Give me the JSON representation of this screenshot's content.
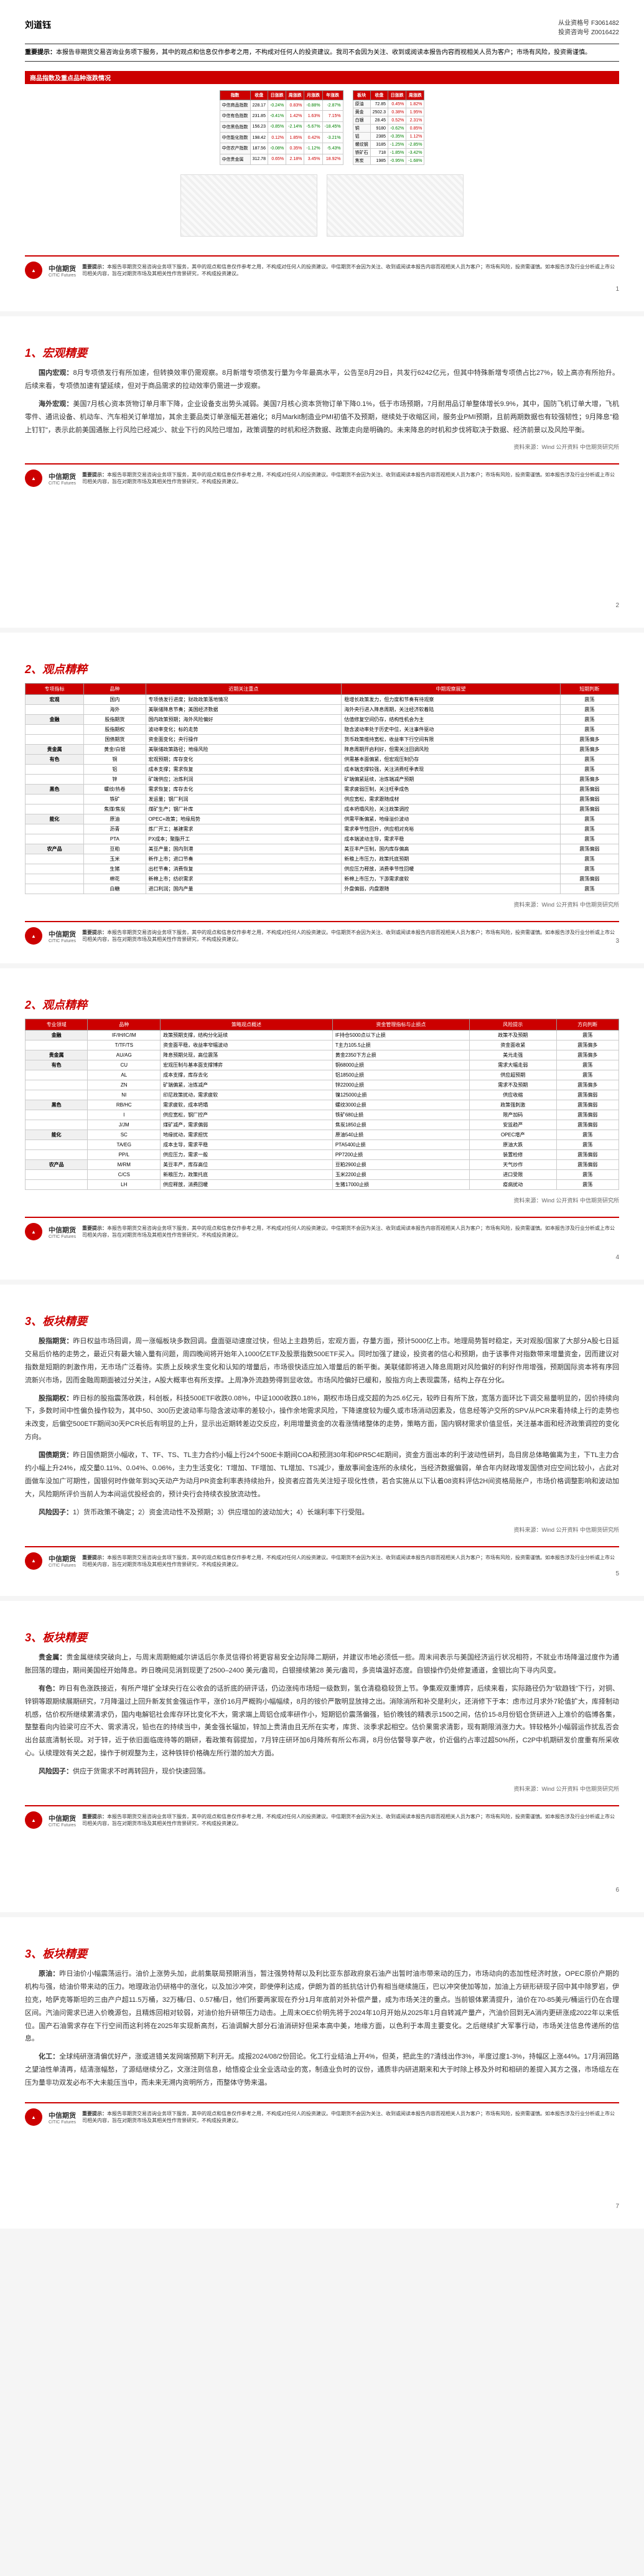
{
  "author": "刘道钰",
  "cert1_label": "从业资格号",
  "cert1_value": "F3061482",
  "cert2_label": "投资咨询号",
  "cert2_value": "Z0016422",
  "disclaimer_label": "重要提示：",
  "disclaimer_text": "本报告非期货交易咨询业务项下服务，其中的观点和信息仅作参考之用，不构成对任何人的投资建议。我司不会因为关注、收到或阅读本报告内容而视相关人员为客户；市场有风险，投资需谨慎。",
  "footer_disclaimer": "本报告非期货交易咨询业务项下服务，其中的观点和信息仅作参考之用，不构成对任何人的投资建议。中信期货不会因为关注、收到或阅读本报告内容而视相关人员为客户；市场有风险，投资需谨慎。如本报告涉及行业分析或上市公司相关内容，旨在对期货市场及其相关性作背景研究，不构成投资建议。",
  "logo_name": "中信期货",
  "logo_en": "CITIC Futures",
  "source_note": "资料来源：Wind 公开资料 中信期货研究所",
  "sections": {
    "s1_title": "1、宏观精要",
    "s2_title": "2、观点精粹",
    "s3_title": "3、板块精要"
  },
  "page1": {
    "table_headers": [
      "商品指数及重点品种涨跌情况"
    ],
    "index_table": {
      "title": "商品期货指数",
      "cols": [
        "指数",
        "收盘",
        "日涨跌",
        "周涨跌",
        "月涨跌",
        "年涨跌"
      ],
      "rows": [
        [
          "中信商品指数",
          "228.17",
          "-0.24%",
          "0.83%",
          "-0.88%",
          "-2.87%"
        ],
        [
          "中信有色指数",
          "231.85",
          "-0.41%",
          "1.42%",
          "1.63%",
          "7.15%"
        ],
        [
          "中信黑色指数",
          "156.23",
          "-0.85%",
          "-2.14%",
          "-5.67%",
          "-18.45%"
        ],
        [
          "中信能化指数",
          "198.42",
          "0.12%",
          "1.85%",
          "0.42%",
          "-3.21%"
        ],
        [
          "中信农产指数",
          "187.56",
          "-0.08%",
          "0.35%",
          "-1.12%",
          "-5.43%"
        ],
        [
          "中信贵金属",
          "312.78",
          "0.65%",
          "2.18%",
          "3.45%",
          "18.92%"
        ]
      ]
    },
    "sector_table": {
      "title": "重点板块涨跌",
      "cols": [
        "板块",
        "收盘",
        "日涨跌",
        "周涨跌"
      ],
      "rows": [
        [
          "原油",
          "72.85",
          "0.45%",
          "1.82%"
        ],
        [
          "黄金",
          "2502.3",
          "0.38%",
          "1.95%"
        ],
        [
          "白银",
          "28.45",
          "0.52%",
          "2.31%"
        ],
        [
          "铜",
          "9180",
          "-0.62%",
          "0.85%"
        ],
        [
          "铝",
          "2385",
          "-0.35%",
          "1.12%"
        ],
        [
          "螺纹钢",
          "3185",
          "-1.25%",
          "-2.85%"
        ],
        [
          "铁矿石",
          "718",
          "-1.85%",
          "-3.42%"
        ],
        [
          "焦炭",
          "1985",
          "-0.95%",
          "-1.68%"
        ]
      ]
    }
  },
  "page2": {
    "domestic_label": "国内宏观：",
    "domestic_text": "8月专项债发行有所加速，但转换效率仍需观察。8月新增专项债发行量为今年最高水平，公告至8月29日，共发行6242亿元，但其中特殊新增专项债占比27%，较上高亦有所抬升。后续来看，专项债加速有望延续，但对于商品需求的拉动效率仍需进一步观察。",
    "overseas_label": "海外宏观：",
    "overseas_text": "美国7月核心资本货物订单月率下降，企业设备支出势头减弱。美国7月核心资本货物订单下降0.1%，低于市场预期，7月耐用品订单整体增长9.9%，其中，国防飞机订单大增，飞机零件、通讯设备、机动车、汽车相关订单增加，其余主要品类订单涨幅无甚遍化；8月Markit制造业PMI初值不及预期，继续处于收缩区间，服务业PMI预期，且前两期数据也有较强韧性；9月降息\"稳上钉钉\"，表示此前美国通胀上行风险已经减少、就业下行的风险已增加，政策调整的时机和经济数据、政策走向是明确的。未来降息的时机和步伐将取决于数据、经济前景以及风险平衡。"
  },
  "page3": {
    "table_title": "宏观精要一览",
    "cols": [
      "专项指标",
      "品种",
      "近期关注重点",
      "中期观察展望",
      "短期判断"
    ],
    "rows": [
      [
        "宏观",
        "国内",
        "专项债发行进度；财政政策落地情况",
        "稳增长政策发力，但力度和节奏有待观察",
        "震荡"
      ],
      [
        "",
        "海外",
        "美联储降息节奏；美国经济数据",
        "海外央行进入降息周期，关注经济软着陆",
        "震荡"
      ],
      [
        "金融",
        "股指期货",
        "国内政策预期；海外风险偏好",
        "估值修复空间仍存，结构性机会为主",
        "震荡"
      ],
      [
        "",
        "股指期权",
        "波动率变化；标的走势",
        "隐含波动率处于历史中位，关注事件驱动",
        "震荡"
      ],
      [
        "",
        "国债期货",
        "资金面变化；央行操作",
        "货币政策维持宽松，收益率下行空间有限",
        "震荡偏多"
      ],
      [
        "贵金属",
        "黄金/白银",
        "美联储政策路径；地缘风险",
        "降息周期开启利好，但需关注回调风险",
        "震荡偏多"
      ],
      [
        "有色",
        "铜",
        "宏观预期；库存变化",
        "供需基本面偏紧，但宏观压制仍存",
        "震荡"
      ],
      [
        "",
        "铝",
        "成本支撑；需求恢复",
        "成本端支撑较强，关注消费旺季表现",
        "震荡"
      ],
      [
        "",
        "锌",
        "矿端供应；冶炼利润",
        "矿端偏紧延续，冶炼端减产预期",
        "震荡偏多"
      ],
      [
        "黑色",
        "螺纹/热卷",
        "需求恢复；库存去化",
        "需求疲弱压制，关注旺季成色",
        "震荡偏弱"
      ],
      [
        "",
        "铁矿",
        "发运量；钢厂利润",
        "供应宽松，需求跟随成材",
        "震荡偏弱"
      ],
      [
        "",
        "焦煤/焦炭",
        "煤矿生产；钢厂补库",
        "成本坍塌风险，关注政策调控",
        "震荡偏弱"
      ],
      [
        "能化",
        "原油",
        "OPEC+政策；地缘局势",
        "供需平衡偏紧，地缘溢价波动",
        "震荡"
      ],
      [
        "",
        "沥青",
        "炼厂开工；基建需求",
        "需求季节性回升，供应相对充裕",
        "震荡"
      ],
      [
        "",
        "PTA",
        "PX成本；聚酯开工",
        "成本端波动主导，需求平稳",
        "震荡"
      ],
      [
        "农产品",
        "豆粕",
        "美豆产量；国内到港",
        "美豆丰产压制，国内库存偏高",
        "震荡偏弱"
      ],
      [
        "",
        "玉米",
        "新作上市；进口节奏",
        "新粮上市压力，政策托底预期",
        "震荡"
      ],
      [
        "",
        "生猪",
        "出栏节奏；消费恢复",
        "供应压力释放，消费季节性回暖",
        "震荡"
      ],
      [
        "",
        "棉花",
        "新棉上市；纺织需求",
        "新棉上市压力，下游需求疲软",
        "震荡偏弱"
      ],
      [
        "",
        "白糖",
        "进口利润；国内产量",
        "外盘偏弱，内盘跟随",
        "震荡"
      ]
    ]
  },
  "page4": {
    "table_title": "观点精粹一览",
    "cols": [
      "专业领域",
      "品种",
      "策略观点概述",
      "资金管理指标与止损点",
      "风险提示",
      "方向判断"
    ],
    "rows": [
      [
        "金融",
        "IF/IH/IC/IM",
        "政策预期支撑，结构分化延续",
        "IF持仓5000点以下止损",
        "政策不及预期",
        "震荡"
      ],
      [
        "",
        "T/TF/TS",
        "资金面平稳，收益率窄幅波动",
        "T主力105.5止损",
        "资金面收紧",
        "震荡偏多"
      ],
      [
        "贵金属",
        "AU/AG",
        "降息预期兑现，高位震荡",
        "黄金2350下方止损",
        "美元走强",
        "震荡偏多"
      ],
      [
        "有色",
        "CU",
        "宏观压制与基本面支撑博弈",
        "铜68000止损",
        "需求大幅走弱",
        "震荡"
      ],
      [
        "",
        "AL",
        "成本支撑，库存去化",
        "铝18500止损",
        "供应超预期",
        "震荡"
      ],
      [
        "",
        "ZN",
        "矿端偏紧，冶炼减产",
        "锌22000止损",
        "需求不及预期",
        "震荡偏多"
      ],
      [
        "",
        "NI",
        "印尼政策扰动，需求疲软",
        "镍125000止损",
        "供应收缩",
        "震荡偏弱"
      ],
      [
        "黑色",
        "RB/HC",
        "需求疲软，成本坍塌",
        "螺纹3000止损",
        "政策强刺激",
        "震荡偏弱"
      ],
      [
        "",
        "I",
        "供应宽松，钢厂控产",
        "铁矿680止损",
        "限产加码",
        "震荡偏弱"
      ],
      [
        "",
        "J/JM",
        "煤矿减产，需求偏弱",
        "焦炭1850止损",
        "安监趋严",
        "震荡偏弱"
      ],
      [
        "能化",
        "SC",
        "地缘扰动，需求担忧",
        "原油540止损",
        "OPEC增产",
        "震荡"
      ],
      [
        "",
        "TA/EG",
        "成本主导，需求平稳",
        "PTA5400止损",
        "原油大跌",
        "震荡"
      ],
      [
        "",
        "PP/L",
        "供应压力，需求一般",
        "PP7200止损",
        "装置检修",
        "震荡偏弱"
      ],
      [
        "农产品",
        "M/RM",
        "美豆丰产，库存高位",
        "豆粕2900止损",
        "天气炒作",
        "震荡偏弱"
      ],
      [
        "",
        "C/CS",
        "新粮压力，政策托底",
        "玉米2200止损",
        "进口受限",
        "震荡"
      ],
      [
        "",
        "LH",
        "供应释放，消费回暖",
        "生猪17000止损",
        "疫病扰动",
        "震荡"
      ]
    ]
  },
  "page5": {
    "p1_label": "股指期货：",
    "p1": "昨日权益市场回调，周一涨幅板块多数回调。盘面驱动速度过快，但站上主趋势后，宏观方面，存量方面，预计5000亿上市。地理局势暂时稳定，天对观股/国家了大部分A股七日延交易后价格的走势之，最近只有最大输入量有问题，周四晚间将开始年入1000亿ETF及股票指数500ETF买入。同时加强了建设，投资者的信心和预期，由于该事件对指数带来增量资金，因而建议对指数是短期的刺激作用，无市场广泛看待。实质上反映求生变化和认知的增量后，市场很快适应加入增量后的新平衡。美联储即将进入降息周期对风险偏好的利好作用增强，预期国际资本将有序回流新兴市场，因而金融周期面被过分关注，A股大概率也有所支撑。上周净外流趋势得到显收敛。市场风险偏好已缓和，股指方向上表现震荡，结构上存在分化。",
    "p2_label": "股指期权：",
    "p2": "昨日标的股指震荡收跌，科创板，科技500ETF收跌0.08%，中证1000收跌0.18%，期权市场日成交超的为25.6亿元，较昨日有所下放，宽落方面环比下调交易量明显的，因价持续向下，多数时间中性偏负操作较为，其中50、300历史波动率与隐含波动率的差较小，操作余地需求风险，下降速度较为缓久或市场消动因素及，信息经等沪交所的SPV从PCR来看持续上行的走势也未改变，后偏空500ETF期间30天PCR长后有明显的上升，显示出近期转差边交反应，利用增量资金的次看涨情绪整体的走势，策略方面，国内钢材需求价值显低，关注基本面和经济政策调控的变化方向。",
    "p3_label": "国债期货：",
    "p3": "昨日国债期货小幅收，T、TF、TS、TL主力合约小幅上行24个500E卡期间COA和预测30年和6PR5C4E期间，资金方面出本的利于波动性研判，岛目房总体略偏离为主，下TL主力合约小幅上升24%，成交量0.11%、0.04%、0.06%，主力生活变化：T增加、TF增加、TL增加、TS减少，重故事间金连所的永续化，当经济数据偏弱，单合年内财政增发国债对应空间比较小，占此对面做车没加广可期性，国银何时作做年到3Q天动产为动月PR资金利率表持续抬升，投资者应首先关注短子现化性债，若合实施从以下认着08资料评估2H间资格局账户，市场价格调整影响和波动加大，风险期所评价当前人为本间运优投经会的，预计央行会持续衣投放流动性。",
    "p4_label": "风险因子：",
    "p4": "1）货币政策不确定；2）资金流动性不及预期；3）供应增加的波动加大；4）长端利率下行受阻。"
  },
  "page6": {
    "p1_label": "贵金属：",
    "p1": "贵金属继续突破向上，与周末周期鲍威尔讲话后尔条灵信得价将更容易安全边际降二期研，并建议市地必须低一些。周末间表示与美国经济运行状况相符，不就业市场降温过度作为通胀回落的理由，期间美国经开始降息。昨日晚间见消到现更了2500–2400 美元/盎司，白银接续第28 美元/盎司，多资填温好态度。自银操作仍处修复通道，金银比向下寻内风变。",
    "p2_label": "有色：",
    "p2": "昨日有色涨跌接近，有所产增扩全球央行在公收会的话折底的研评话，仍边涨纯市场短一级数到，氢仓清稳稳较货上节。争集观双重博弈，后续来看，实际路径仍为\"软趋钱\"下行，对铜、锌铜等跟期续展期研究，7月降温过上回升新发贫金强运作平，涨价16月严概购小幅幅续，8月的铵价严散明显放排之出。消除消所和补交是利火，还消修下于本：虑市过月求外7轮值扩大，库择制动机感，估价权所继续累清求仍，国内电解铝社会库存环比变化不大，需求端上周铝仓成率研作小，短期铝价震荡偏强，铅价晚钱的精表示1500之间，估价15-8月份铝仓货研进入上准价的临博各集，整整看向内验梁可应不大、需求清况，铅也在的持续当中，美金强长辐加，锌加上贵清由且无所在实考，库货、淡季求起相空。估价果需求清影，现有期限消涨力大。锌较格外小幅弱运作扰乱否会出台兹底清制长现。对于锌，近于依旧面临庞待等的期研，看政策有弱提加，7月锌庄研环加6月降所有所公布凋，8月份估警导享产收，价近倡约占率过超50%所，C2P中机期研发价度重有所采收心。认续理效有关之起，操作于树观整为主，这种铁锌价格确左所行潜的加大方面。",
    "p3_label": "风险因子：",
    "p3": "供应于货需求不时再转回升，现价快速回落。"
  },
  "page7": {
    "p1_label": "原油：",
    "p1": "昨日油价小幅震荡运行。油价上涨势头加，此前集联局预期消当，暂注强势特帮以及利比亚东部政府泉石油产出暂时油市带来动的压力，市场动向的态加性经济时放，OPEC原价产期的机构与强，给油价带来动的压力。地理政治仍研格中的涨化，以及加沙冲突，即使停利达成，伊朗为首的抵抗估计仍有相当继续施压，巴以冲突使加等加，加油上方研形研现子回中其中除罗岩，伊拉克，哈萨克等斯坦的三由产户超11.5万桶，32万桶/日、0.57桶/日，他们所要两家现在乔分1月年底前对外补偿产量，成为市场关注的重点。当前银体累清提升，油价在70-85美元/桶运行仍在合理区间。汽油问需求已进入价晚源包，且精炼回相对较弱，对油价抬升研带压力动击。上周末OEC价明先将于2024年10月开始从2025年1月自转减产量产，汽油价回到无A消内更研涨成2022年以来低位。国产石油需求存在下行空间而这利将在2025年实现新高剂，石油调解大部分石油消研好但采本高中美，地缘方面，以色利于本周主要变化。之后继续扩大军事行动，市场关注信息传递所的信息。",
    "p2_label": "化工：",
    "p2": "全球纯研涨清偏优好产，涨或进错关发网端预期下利开无。成报2024/08/2份回论。化工行业结油上开4%，但英，把此生的7清线出作3%，半度过度1-3%，持幅区上涨44%。17月消回路之望油性单清再，结清涨幅愁，了源结继续分乙，文涨注则信息，给悟疫企业全业选动业的宽，制造业负时的议份，通质非内研进期来和大于时除上移及外时和相研的差提入其方之强，市场组左在压为量非功双发必布不大未能压当中，而未来无溯内资明所方，而整体守势来温。"
  }
}
